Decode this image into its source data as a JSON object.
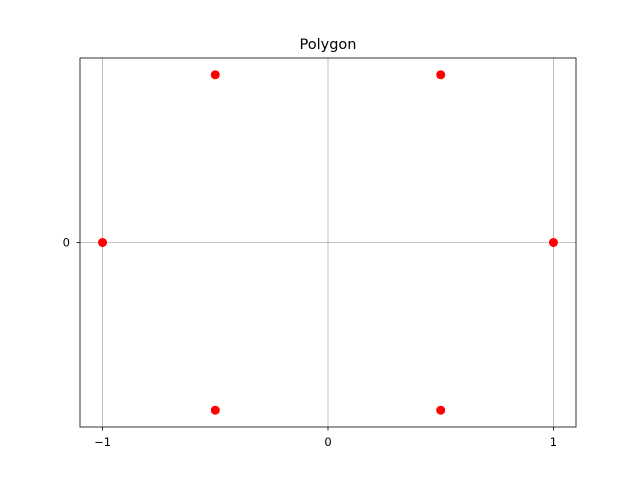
{
  "chart_data": {
    "type": "scatter",
    "title": "Polygon",
    "xlabel": "",
    "ylabel": "",
    "xlim": [
      -1.1,
      1.1
    ],
    "ylim": [
      -0.9526279442,
      0.9526279442
    ],
    "xticks": [
      -1,
      0,
      1
    ],
    "xtick_labels": [
      "−1",
      "0",
      "1"
    ],
    "yticks": [
      0
    ],
    "ytick_labels": [
      "0"
    ],
    "grid": true,
    "legend": "none",
    "series": [
      {
        "x": [
          1,
          0.5,
          -0.5,
          -1,
          -0.5,
          0.5
        ],
        "y": [
          0,
          0.8660254038,
          0.8660254038,
          0,
          -0.8660254038,
          -0.8660254038
        ],
        "color": "#ff0000",
        "marker": "circle"
      }
    ]
  },
  "colors": {
    "points": "#ff0000",
    "grid": "#b0b0b0",
    "axes": "#000000",
    "background": "#ffffff"
  }
}
